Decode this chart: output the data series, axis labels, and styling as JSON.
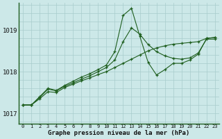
{
  "title": "Graphe pression niveau de la mer (hPa)",
  "bg_color": "#cce8e8",
  "line_color": "#1e5e1e",
  "grid_color": "#a8cccc",
  "xlim_min": -0.5,
  "xlim_max": 23.5,
  "ylim_min": 1016.75,
  "ylim_max": 1019.65,
  "yticks": [
    1017,
    1018,
    1019
  ],
  "xtick_labels": [
    "0",
    "1",
    "2",
    "3",
    "4",
    "5",
    "6",
    "7",
    "8",
    "9",
    "10",
    "11",
    "12",
    "13",
    "14",
    "15",
    "16",
    "17",
    "18",
    "19",
    "20",
    "21",
    "22",
    "23"
  ],
  "s0": [
    1017.2,
    1017.2,
    1017.35,
    1017.52,
    1017.5,
    1017.62,
    1017.7,
    1017.78,
    1017.85,
    1017.93,
    1018.0,
    1018.1,
    1018.2,
    1018.3,
    1018.4,
    1018.5,
    1018.57,
    1018.62,
    1018.66,
    1018.68,
    1018.7,
    1018.72,
    1018.8,
    1018.82
  ],
  "s1": [
    1017.2,
    1017.2,
    1017.38,
    1017.58,
    1017.54,
    1017.65,
    1017.73,
    1017.82,
    1017.9,
    1018.0,
    1018.1,
    1018.28,
    1018.72,
    1019.05,
    1018.9,
    1018.65,
    1018.48,
    1018.38,
    1018.32,
    1018.3,
    1018.33,
    1018.45,
    1018.78,
    1018.78
  ],
  "s2": [
    1017.2,
    1017.2,
    1017.4,
    1017.6,
    1017.55,
    1017.67,
    1017.77,
    1017.87,
    1017.95,
    1018.05,
    1018.16,
    1018.48,
    1019.35,
    1019.52,
    1018.85,
    1018.22,
    1017.92,
    1018.05,
    1018.2,
    1018.2,
    1018.28,
    1018.42,
    1018.8,
    1018.82
  ]
}
